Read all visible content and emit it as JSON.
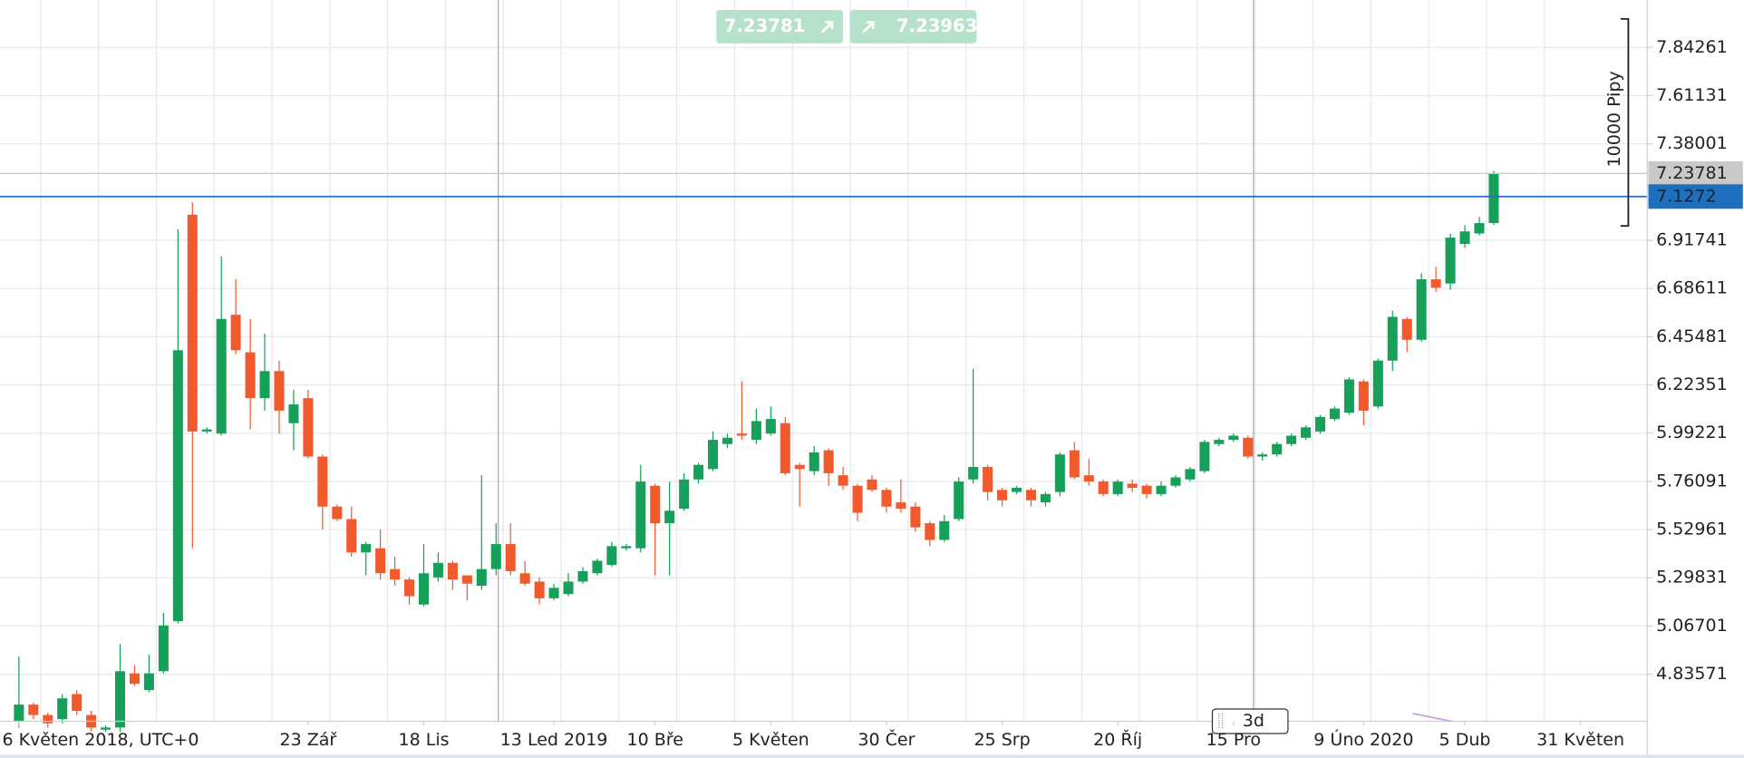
{
  "chart_data": {
    "type": "candlestick",
    "categories": [
      "6 Květen 2018, UTC+0",
      null,
      null,
      null,
      null,
      null,
      null,
      null,
      null,
      null,
      null,
      null,
      null,
      null,
      null,
      null,
      null,
      null,
      null,
      null,
      "23 Zář",
      null,
      null,
      null,
      null,
      null,
      null,
      null,
      "18 Lis",
      null,
      null,
      null,
      null,
      null,
      null,
      null,
      null,
      "13 Led 2019",
      null,
      null,
      null,
      null,
      null,
      null,
      "10 Bře",
      null,
      null,
      null,
      null,
      null,
      null,
      null,
      "5 Květen",
      null,
      null,
      null,
      null,
      null,
      null,
      null,
      "30 Čer",
      null,
      null,
      null,
      null,
      null,
      null,
      null,
      "25 Srp",
      null,
      null,
      null,
      null,
      null,
      null,
      null,
      "20 Říj",
      null,
      null,
      null,
      null,
      null,
      null,
      null,
      "15 Pro",
      null,
      null,
      null,
      null,
      null,
      null,
      null,
      null,
      "9 Úno 2020",
      null,
      null,
      null,
      null,
      null,
      null,
      "5 Dub",
      null,
      null,
      null,
      null,
      null,
      null,
      null,
      "31 Květen",
      null
    ],
    "open": [
      4.61,
      4.69,
      4.64,
      4.62,
      4.74,
      4.64,
      4.57,
      4.58,
      4.84,
      4.76,
      4.85,
      5.09,
      7.04,
      6.0,
      5.99,
      6.56,
      6.38,
      6.16,
      6.29,
      6.04,
      6.16,
      5.88,
      5.64,
      5.58,
      5.42,
      5.44,
      5.34,
      5.29,
      5.17,
      5.3,
      5.37,
      5.31,
      5.26,
      5.34,
      5.46,
      5.32,
      5.28,
      5.2,
      5.22,
      5.28,
      5.32,
      5.36,
      5.44,
      5.44,
      5.74,
      5.56,
      5.63,
      5.77,
      5.82,
      5.94,
      5.99,
      5.96,
      5.99,
      6.04,
      5.84,
      5.81,
      5.91,
      5.79,
      5.74,
      5.77,
      5.72,
      5.66,
      5.64,
      5.56,
      5.48,
      5.58,
      5.77,
      5.83,
      5.72,
      5.71,
      5.72,
      5.66,
      5.71,
      5.91,
      5.79,
      5.76,
      5.7,
      5.75,
      5.74,
      5.7,
      5.74,
      5.77,
      5.81,
      5.94,
      5.96,
      5.97,
      5.88,
      5.89,
      5.94,
      5.97,
      6.0,
      6.06,
      6.09,
      6.24,
      6.12,
      6.34,
      6.54,
      6.44,
      6.73,
      6.71,
      6.9,
      6.95,
      7.0,
      null,
      null,
      null,
      null,
      null,
      null,
      null
    ],
    "high": [
      4.92,
      4.7,
      4.65,
      4.74,
      4.76,
      4.66,
      4.59,
      4.98,
      4.88,
      4.93,
      5.13,
      6.97,
      7.1,
      6.02,
      6.84,
      6.73,
      6.54,
      6.47,
      6.34,
      6.2,
      6.2,
      5.89,
      5.65,
      5.64,
      5.47,
      5.53,
      5.4,
      5.3,
      5.46,
      5.42,
      5.38,
      5.31,
      5.79,
      5.56,
      5.56,
      5.38,
      5.3,
      5.27,
      5.32,
      5.35,
      5.39,
      5.47,
      5.46,
      5.84,
      5.75,
      5.76,
      5.8,
      5.85,
      6.0,
      5.99,
      6.24,
      6.11,
      6.12,
      6.07,
      5.85,
      5.93,
      5.92,
      5.83,
      5.75,
      5.79,
      5.73,
      5.77,
      5.66,
      5.57,
      5.6,
      5.78,
      6.3,
      5.84,
      5.73,
      5.74,
      5.73,
      5.71,
      5.9,
      5.95,
      5.87,
      5.77,
      5.77,
      5.77,
      5.75,
      5.76,
      5.79,
      5.83,
      5.96,
      5.97,
      5.99,
      5.98,
      5.9,
      5.95,
      5.99,
      6.03,
      6.08,
      6.12,
      6.26,
      6.25,
      6.35,
      6.58,
      6.55,
      6.76,
      6.79,
      6.95,
      6.99,
      7.03,
      7.25,
      null,
      null,
      null,
      null,
      null,
      null,
      null
    ],
    "low": [
      4.58,
      4.62,
      4.58,
      4.6,
      4.64,
      4.56,
      4.56,
      4.56,
      4.78,
      4.75,
      4.84,
      5.08,
      5.44,
      5.99,
      5.98,
      6.37,
      6.01,
      6.1,
      5.99,
      5.91,
      5.87,
      5.53,
      5.57,
      5.4,
      5.31,
      5.29,
      5.26,
      5.17,
      5.16,
      5.28,
      5.24,
      5.19,
      5.24,
      5.31,
      5.31,
      5.26,
      5.17,
      5.19,
      5.21,
      5.27,
      5.31,
      5.35,
      5.43,
      5.42,
      5.31,
      5.31,
      5.62,
      5.75,
      5.81,
      5.92,
      5.96,
      5.94,
      5.98,
      5.79,
      5.64,
      5.79,
      5.74,
      5.72,
      5.57,
      5.71,
      5.61,
      5.61,
      5.52,
      5.45,
      5.47,
      5.57,
      5.75,
      5.67,
      5.64,
      5.7,
      5.64,
      5.64,
      5.69,
      5.77,
      5.74,
      5.69,
      5.69,
      5.71,
      5.68,
      5.69,
      5.73,
      5.76,
      5.8,
      5.93,
      5.95,
      5.87,
      5.86,
      5.88,
      5.93,
      5.96,
      5.99,
      6.05,
      6.08,
      6.03,
      6.11,
      6.29,
      6.38,
      6.43,
      6.67,
      6.68,
      6.88,
      6.94,
      6.99,
      null,
      null,
      null,
      null,
      null,
      null,
      null
    ],
    "close": [
      4.69,
      4.64,
      4.6,
      4.72,
      4.66,
      4.58,
      4.58,
      4.85,
      4.79,
      4.84,
      5.07,
      6.39,
      6.0,
      6.01,
      6.54,
      6.39,
      6.16,
      6.29,
      6.1,
      6.13,
      5.88,
      5.64,
      5.58,
      5.42,
      5.46,
      5.32,
      5.29,
      5.21,
      5.32,
      5.37,
      5.29,
      5.27,
      5.34,
      5.46,
      5.33,
      5.27,
      5.2,
      5.25,
      5.28,
      5.33,
      5.38,
      5.45,
      5.45,
      5.76,
      5.56,
      5.62,
      5.77,
      5.84,
      5.96,
      5.97,
      5.98,
      6.05,
      6.06,
      5.8,
      5.82,
      5.9,
      5.8,
      5.74,
      5.61,
      5.72,
      5.64,
      5.63,
      5.54,
      5.48,
      5.57,
      5.76,
      5.83,
      5.71,
      5.67,
      5.73,
      5.67,
      5.7,
      5.89,
      5.78,
      5.76,
      5.7,
      5.76,
      5.73,
      5.7,
      5.74,
      5.78,
      5.82,
      5.95,
      5.96,
      5.98,
      5.88,
      5.89,
      5.94,
      5.98,
      6.02,
      6.07,
      6.11,
      6.25,
      6.1,
      6.34,
      6.55,
      6.44,
      6.73,
      6.69,
      6.93,
      6.96,
      7.0,
      7.24,
      null,
      null,
      null,
      null,
      null,
      null,
      null
    ],
    "up_color": "#16a05a",
    "down_color": "#f05a2d",
    "ylim": [
      4.61,
      8.07
    ],
    "yticks": [
      7.84261,
      7.61131,
      7.38001,
      6.91741,
      6.68611,
      6.45481,
      6.22351,
      5.99221,
      5.76091,
      5.52961,
      5.29831,
      5.06701,
      4.83571
    ],
    "grid": true,
    "price_lines": [
      {
        "value": 7.23781,
        "color": "#c9c9c9"
      },
      {
        "value": 7.1272,
        "color": "#1f6fbf"
      }
    ],
    "quotes": [
      7.23781,
      7.23963
    ],
    "pip_range_label": "10000 Pipy",
    "timeframe": "3d"
  }
}
